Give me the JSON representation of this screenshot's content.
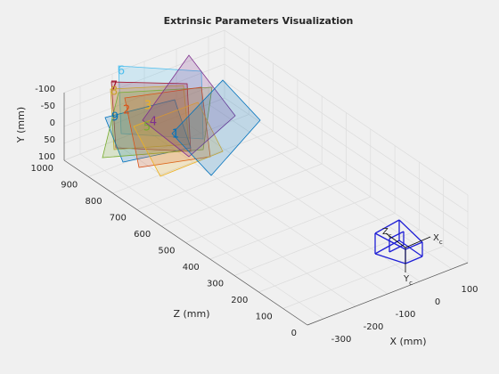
{
  "chart_data": {
    "type": "extrinsics3d",
    "title": "Extrinsic Parameters Visualization",
    "xlabel": "X (mm)",
    "ylabel": "Y (mm)",
    "zlabel": "Z (mm)",
    "xlim": [
      -350,
      150
    ],
    "ylim": [
      -100,
      100
    ],
    "zlim": [
      0,
      1000
    ],
    "xticks": [
      -300,
      -200,
      -100,
      0,
      100
    ],
    "yticks": [
      -100,
      -50,
      0,
      50,
      100
    ],
    "zticks": [
      0,
      100,
      200,
      300,
      400,
      500,
      600,
      700,
      800,
      900,
      1000
    ],
    "grid": true,
    "boards": [
      {
        "label": "1",
        "color": "#0072bd"
      },
      {
        "label": "2",
        "color": "#d95319"
      },
      {
        "label": "3",
        "color": "#edb120"
      },
      {
        "label": "4",
        "color": "#7e2f8e"
      },
      {
        "label": "5",
        "color": "#77ac30"
      },
      {
        "label": "6",
        "color": "#4dbeee"
      },
      {
        "label": "7",
        "color": "#a2142f"
      },
      {
        "label": "8",
        "color": "#c7a32b"
      },
      {
        "label": "9",
        "color": "#0072bd"
      }
    ],
    "camera_color": "#1f1fd6",
    "camera_axes": [
      {
        "main": "X",
        "sub": "c"
      },
      {
        "main": "Y",
        "sub": "c"
      },
      {
        "main": "Z",
        "sub": "c"
      }
    ]
  }
}
